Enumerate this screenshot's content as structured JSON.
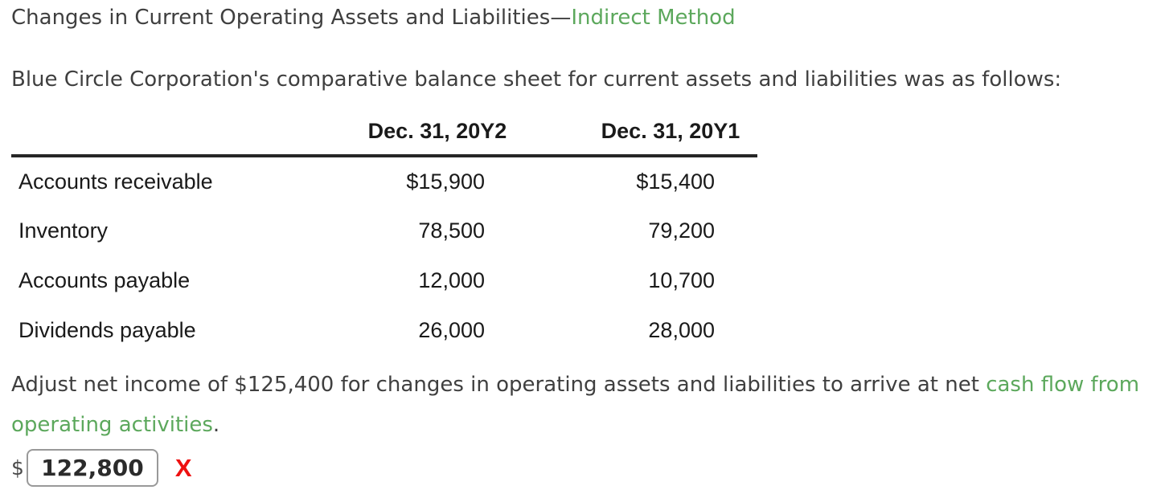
{
  "title": {
    "text": "Changes in Current Operating Assets and Liabilities—",
    "link": "Indirect Method"
  },
  "intro": "Blue Circle Corporation's comparative balance sheet for current assets and liabilities was as follows:",
  "table": {
    "headers": [
      "Dec. 31, 20Y2",
      "Dec. 31, 20Y1"
    ],
    "rows": [
      {
        "label": "Accounts receivable",
        "y2": "$15,900",
        "y1": "$15,400"
      },
      {
        "label": "Inventory",
        "y2": "78,500",
        "y1": "79,200"
      },
      {
        "label": "Accounts payable",
        "y2": "12,000",
        "y1": "10,700"
      },
      {
        "label": "Dividends payable",
        "y2": "26,000",
        "y1": "28,000"
      }
    ]
  },
  "instruction": {
    "before_link": "Adjust net income of $125,400 for changes in operating assets and liabilities to arrive at net ",
    "link": "cash flow from operating activities",
    "after_link": "."
  },
  "answer": {
    "currency_symbol": "$",
    "value": "122,800",
    "status": "incorrect",
    "status_mark": "X"
  },
  "colors": {
    "link_green": "#5ca85c",
    "incorrect_red": "#ee1111",
    "body_text": "#3f3f3f",
    "table_text": "#1a1a1a",
    "input_border": "#999999"
  }
}
